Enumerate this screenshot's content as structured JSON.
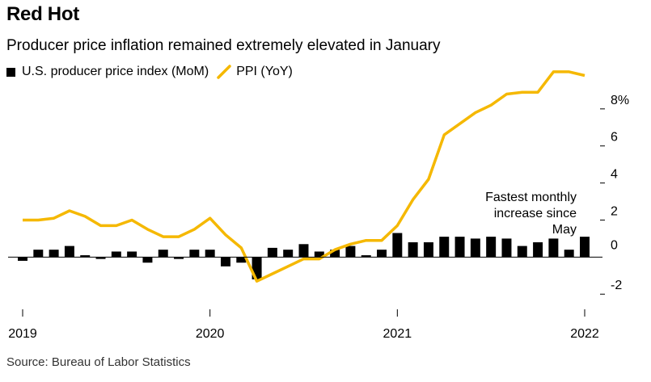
{
  "title": "Red Hot",
  "subtitle": "Producer price inflation remained extremely elevated in January",
  "legend": [
    {
      "label": "U.S. producer price index (MoM)",
      "color": "#000000",
      "kind": "bar"
    },
    {
      "label": "PPI (YoY)",
      "color": "#f5b800",
      "kind": "line"
    }
  ],
  "source": "Source: Bureau of Labor Statistics",
  "annotation": [
    "Fastest monthly",
    "increase since",
    "May"
  ],
  "chart_data": {
    "type": "bar+line",
    "x_tick_labels": [
      "2019",
      "2020",
      "2021",
      "2022"
    ],
    "y_tick_labels": [
      "8%",
      "6",
      "4",
      "2",
      "0",
      "-2"
    ],
    "y_ticks": [
      8,
      6,
      4,
      2,
      0,
      -2
    ],
    "ylim": [
      -2.6,
      9.3
    ],
    "months": [
      "2019-01",
      "2019-02",
      "2019-03",
      "2019-04",
      "2019-05",
      "2019-06",
      "2019-07",
      "2019-08",
      "2019-09",
      "2019-10",
      "2019-11",
      "2019-12",
      "2020-01",
      "2020-02",
      "2020-03",
      "2020-04",
      "2020-05",
      "2020-06",
      "2020-07",
      "2020-08",
      "2020-09",
      "2020-10",
      "2020-11",
      "2020-12",
      "2021-01",
      "2021-02",
      "2021-03",
      "2021-04",
      "2021-05",
      "2021-06",
      "2021-07",
      "2021-08",
      "2021-09",
      "2021-10",
      "2021-11",
      "2021-12",
      "2022-01"
    ],
    "series": [
      {
        "name": "U.S. producer price index (MoM)",
        "type": "bar",
        "color": "#000000",
        "values": [
          -0.2,
          0.4,
          0.4,
          0.6,
          0.1,
          -0.1,
          0.3,
          0.3,
          -0.3,
          0.4,
          -0.1,
          0.4,
          0.4,
          -0.5,
          -0.3,
          -1.2,
          0.5,
          0.4,
          0.7,
          0.3,
          0.4,
          0.6,
          0.1,
          0.4,
          1.3,
          0.8,
          0.8,
          1.1,
          1.1,
          1.0,
          1.1,
          1.0,
          0.6,
          0.8,
          1.0,
          0.4,
          1.1
        ]
      },
      {
        "name": "PPI (YoY)",
        "type": "line",
        "color": "#f5b800",
        "values": [
          2.0,
          2.0,
          2.1,
          2.5,
          2.2,
          1.7,
          1.7,
          2.0,
          1.5,
          1.1,
          1.1,
          1.5,
          2.1,
          1.2,
          0.5,
          -1.3,
          -0.9,
          -0.5,
          -0.1,
          -0.1,
          0.4,
          0.7,
          0.9,
          0.9,
          1.7,
          3.1,
          4.2,
          6.6,
          7.2,
          7.8,
          8.2,
          8.8,
          8.9,
          8.9,
          10.0,
          10.0,
          9.8
        ]
      }
    ]
  }
}
